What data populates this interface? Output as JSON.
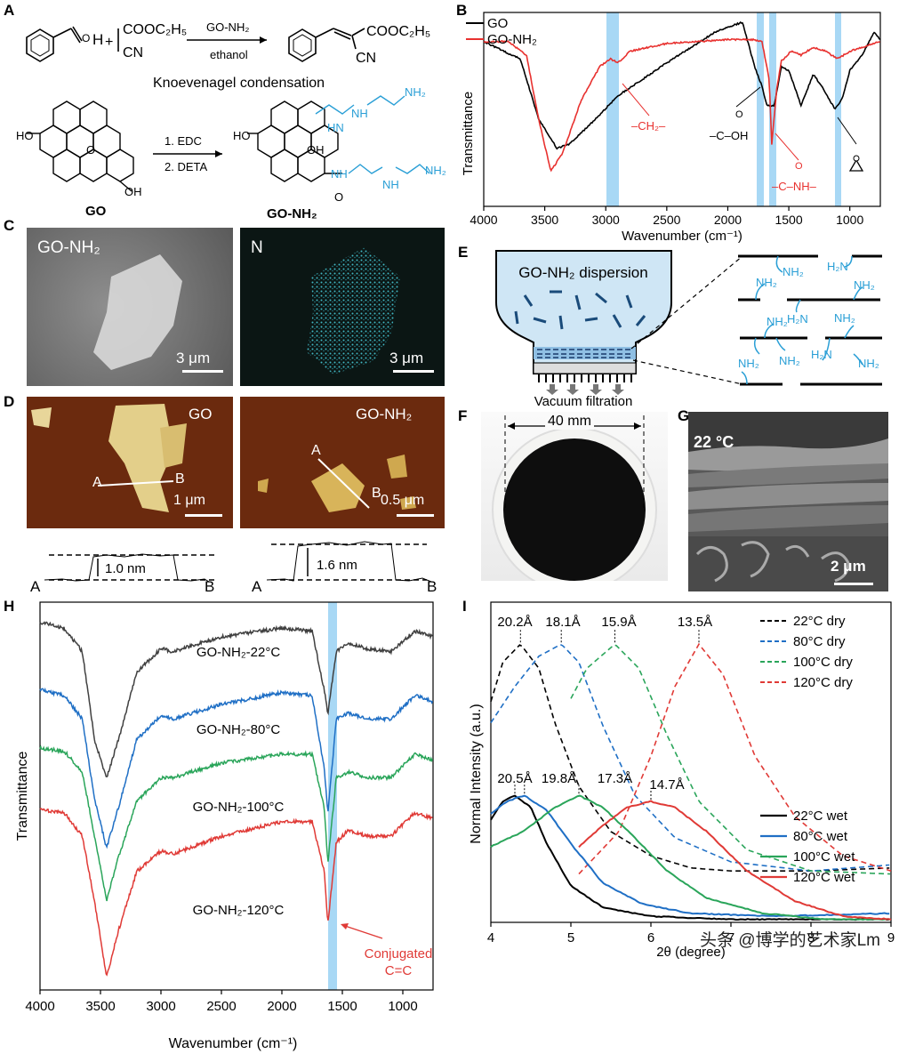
{
  "panels": {
    "A": {
      "letter": "A",
      "reaction1": {
        "catalyst": "GO-NH₂",
        "solvent": "ethanol",
        "reactant_ester": "COOC₂H₅",
        "reactant_cn": "CN",
        "product_ester": "COOC₂H₅",
        "product_cn": "CN",
        "aldehyde_h": "H",
        "plus": "+",
        "name": "Knoevenagel condensation"
      },
      "reaction2": {
        "step1": "1. EDC",
        "step2": "2. DETA",
        "left_name": "GO",
        "right_name": "GO-NH₂",
        "ho": "HO",
        "oh": "OH",
        "o": "O",
        "nh2": "NH₂",
        "hn": "HN",
        "nh": "NH",
        "h": "H"
      }
    },
    "B": {
      "letter": "B",
      "legend": [
        "GO",
        "GO-NH₂"
      ],
      "xlabel": "Wavenumber (cm⁻¹)",
      "ylabel": "Transmittance",
      "xticks": [
        "4000",
        "3500",
        "3000",
        "2500",
        "2000",
        "1500",
        "1000"
      ],
      "annotations": {
        "ch2": "–CH₂–",
        "cooh_o": "O",
        "cooh": "–C–OH",
        "conh_o": "O",
        "conh": "–C–NH–"
      }
    },
    "C": {
      "letter": "C",
      "left_label": "GO-NH₂",
      "right_label": "N",
      "scale_left": "3 μm",
      "scale_right": "3 μm"
    },
    "D": {
      "letter": "D",
      "left_label": "GO",
      "right_label": "GO-NH₂",
      "scale_left": "1 μm",
      "scale_right": "0.5 μm",
      "a": "A",
      "b": "B",
      "height_left": "1.0 nm",
      "height_right": "1.6 nm"
    },
    "E": {
      "letter": "E",
      "dispersion": "GO-NH₂ dispersion",
      "filtration": "Vacuum filtration",
      "nh2": "NH₂",
      "h2n": "H₂N"
    },
    "F": {
      "letter": "F",
      "diameter": "40 mm"
    },
    "G": {
      "letter": "G",
      "temp": "22 °C",
      "scale": "2 μm"
    },
    "H": {
      "letter": "H",
      "xlabel": "Wavenumber (cm⁻¹)",
      "ylabel": "Transmittance",
      "xticks": [
        "4000",
        "3500",
        "3000",
        "2500",
        "2000",
        "1500",
        "1000"
      ],
      "series": [
        "GO-NH₂-22°C",
        "GO-NH₂-80°C",
        "GO-NH₂-100°C",
        "GO-NH₂-120°C"
      ],
      "annotation1": "Conjugated",
      "annotation2": "C=C"
    },
    "I": {
      "letter": "I",
      "xlabel": "2θ (degree)",
      "ylabel": "Normal Intensity (a.u.)",
      "xticks": [
        "4",
        "5",
        "6",
        "7",
        "8",
        "9"
      ],
      "legend_dry": [
        "22°C dry",
        "80°C dry",
        "100°C dry",
        "120°C dry"
      ],
      "legend_wet": [
        "22°C wet",
        "80°C wet",
        "100°C wet",
        "120°C wet"
      ],
      "dry_peaks": [
        "20.2Å",
        "18.1Å",
        "15.9Å",
        "13.5Å"
      ],
      "wet_peaks": [
        "20.5Å",
        "19.8Å",
        "17.3Å",
        "14.7Å"
      ]
    }
  },
  "watermark": "头条 @博学的艺术家Lm",
  "colors": {
    "go": "#000000",
    "gonh2": "#e8312f",
    "band": "#a8d8f5",
    "c22": "#404040",
    "c80": "#1f6fc5",
    "c100": "#2aa55a",
    "c120": "#e03a36",
    "teal": "#2a9fd6"
  },
  "chart_data": [
    {
      "type": "line",
      "title": "",
      "xlabel": "Wavenumber (cm⁻¹)",
      "ylabel": "Transmittance",
      "xlim": [
        4000,
        750
      ],
      "series": [
        {
          "name": "GO",
          "x": [
            4000,
            3700,
            3550,
            3400,
            3300,
            3100,
            2900,
            2500,
            2100,
            1880,
            1780,
            1720,
            1680,
            1620,
            1560,
            1500,
            1400,
            1300,
            1230,
            1120,
            1060,
            1000,
            900,
            800,
            750
          ],
          "y": [
            0.85,
            0.76,
            0.45,
            0.3,
            0.32,
            0.44,
            0.57,
            0.74,
            0.9,
            0.95,
            0.72,
            0.62,
            0.52,
            0.52,
            0.72,
            0.7,
            0.52,
            0.68,
            0.62,
            0.5,
            0.56,
            0.7,
            0.78,
            0.9,
            0.86
          ]
        },
        {
          "name": "GO-NH₂",
          "x": [
            4000,
            3800,
            3650,
            3550,
            3450,
            3350,
            3200,
            3050,
            2960,
            2900,
            2800,
            2500,
            2000,
            1800,
            1720,
            1660,
            1640,
            1600,
            1560,
            1480,
            1400,
            1300,
            1200,
            1100,
            1000,
            900,
            800,
            750
          ],
          "y": [
            0.85,
            0.85,
            0.78,
            0.45,
            0.18,
            0.28,
            0.55,
            0.72,
            0.76,
            0.74,
            0.8,
            0.84,
            0.86,
            0.86,
            0.85,
            0.65,
            0.32,
            0.6,
            0.75,
            0.8,
            0.78,
            0.82,
            0.8,
            0.76,
            0.8,
            0.82,
            0.84,
            0.85
          ]
        }
      ]
    },
    {
      "type": "line",
      "title": "",
      "xlabel": "Wavenumber (cm⁻¹)",
      "ylabel": "Transmittance",
      "xlim": [
        4000,
        750
      ],
      "series": [
        {
          "name": "GO-NH₂-22°C",
          "x": [
            4000,
            3800,
            3650,
            3550,
            3450,
            3350,
            3200,
            3000,
            2900,
            2500,
            2000,
            1750,
            1650,
            1620,
            1550,
            1450,
            1300,
            1100,
            900,
            750
          ],
          "y": [
            0.95,
            0.93,
            0.85,
            0.55,
            0.42,
            0.55,
            0.78,
            0.86,
            0.85,
            0.9,
            0.93,
            0.92,
            0.72,
            0.64,
            0.85,
            0.88,
            0.86,
            0.85,
            0.92,
            0.9
          ]
        },
        {
          "name": "GO-NH₂-80°C",
          "x": [
            4000,
            3800,
            3650,
            3550,
            3450,
            3350,
            3200,
            3000,
            2900,
            2500,
            2000,
            1750,
            1650,
            1620,
            1550,
            1450,
            1300,
            1100,
            900,
            750
          ],
          "y": [
            0.72,
            0.7,
            0.62,
            0.35,
            0.18,
            0.32,
            0.55,
            0.63,
            0.62,
            0.67,
            0.71,
            0.7,
            0.45,
            0.3,
            0.62,
            0.64,
            0.62,
            0.62,
            0.7,
            0.68
          ]
        },
        {
          "name": "GO-NH₂-100°C",
          "x": [
            4000,
            3800,
            3650,
            3550,
            3450,
            3350,
            3200,
            3000,
            2900,
            2500,
            2000,
            1750,
            1650,
            1620,
            1550,
            1450,
            1300,
            1100,
            900,
            750
          ],
          "y": [
            0.52,
            0.51,
            0.44,
            0.22,
            0.0,
            0.15,
            0.34,
            0.42,
            0.42,
            0.47,
            0.5,
            0.5,
            0.32,
            0.13,
            0.42,
            0.44,
            0.42,
            0.42,
            0.5,
            0.48
          ]
        },
        {
          "name": "GO-NH₂-120°C",
          "x": [
            4000,
            3800,
            3650,
            3550,
            3450,
            3350,
            3200,
            3000,
            2900,
            2500,
            2000,
            1750,
            1650,
            1620,
            1550,
            1450,
            1300,
            1100,
            900,
            750
          ],
          "y": [
            0.31,
            0.3,
            0.22,
            0.0,
            -0.26,
            -0.1,
            0.1,
            0.17,
            0.16,
            0.22,
            0.27,
            0.27,
            0.1,
            -0.08,
            0.2,
            0.24,
            0.22,
            0.22,
            0.3,
            0.28
          ]
        }
      ]
    },
    {
      "type": "line",
      "title": "",
      "xlabel": "2θ (degree)",
      "ylabel": "Normal Intensity (a.u.)",
      "xlim": [
        4,
        9
      ],
      "series": [
        {
          "name": "22°C dry",
          "x": [
            4.0,
            4.15,
            4.37,
            4.6,
            4.8,
            5.1,
            5.5,
            6.0,
            6.5,
            7.0,
            8.0,
            9.0
          ],
          "y": [
            0.73,
            0.86,
            0.92,
            0.84,
            0.66,
            0.45,
            0.3,
            0.22,
            0.18,
            0.17,
            0.17,
            0.18
          ]
        },
        {
          "name": "80°C dry",
          "x": [
            4.0,
            4.3,
            4.6,
            4.88,
            5.1,
            5.4,
            5.8,
            6.3,
            7.0,
            8.0,
            9.0
          ],
          "y": [
            0.66,
            0.78,
            0.88,
            0.92,
            0.86,
            0.65,
            0.42,
            0.28,
            0.2,
            0.17,
            0.19
          ]
        },
        {
          "name": "100°C dry",
          "x": [
            5.0,
            5.2,
            5.55,
            5.85,
            6.2,
            6.6,
            7.2,
            8.0,
            9.0
          ],
          "y": [
            0.74,
            0.84,
            0.92,
            0.84,
            0.62,
            0.4,
            0.24,
            0.17,
            0.16
          ]
        },
        {
          "name": "120°C dry",
          "x": [
            5.1,
            5.6,
            6.0,
            6.3,
            6.6,
            6.9,
            7.3,
            7.8,
            8.4,
            9.0
          ],
          "y": [
            0.16,
            0.3,
            0.55,
            0.78,
            0.92,
            0.82,
            0.55,
            0.35,
            0.22,
            0.17
          ]
        },
        {
          "name": "22°C wet",
          "x": [
            4.0,
            4.15,
            4.3,
            4.5,
            4.7,
            5.0,
            5.4,
            6.0,
            7.0,
            8.0,
            9.0
          ],
          "y": [
            0.34,
            0.4,
            0.42,
            0.38,
            0.26,
            0.12,
            0.05,
            0.02,
            0.01,
            0.01,
            0.01
          ]
        },
        {
          "name": "80°C wet",
          "x": [
            4.0,
            4.2,
            4.42,
            4.7,
            5.0,
            5.4,
            5.9,
            6.5,
            7.5,
            9.0
          ],
          "y": [
            0.36,
            0.4,
            0.42,
            0.37,
            0.26,
            0.13,
            0.06,
            0.03,
            0.02,
            0.03
          ]
        },
        {
          "name": "100°C wet",
          "x": [
            4.0,
            4.4,
            4.8,
            5.1,
            5.4,
            5.8,
            6.2,
            6.7,
            7.4,
            8.2,
            9.0
          ],
          "y": [
            0.25,
            0.3,
            0.38,
            0.42,
            0.38,
            0.28,
            0.17,
            0.08,
            0.03,
            0.01,
            0.01
          ]
        },
        {
          "name": "120°C wet",
          "x": [
            5.1,
            5.4,
            5.7,
            6.0,
            6.3,
            6.7,
            7.2,
            7.8,
            8.4,
            9.0
          ],
          "y": [
            0.25,
            0.32,
            0.38,
            0.4,
            0.38,
            0.3,
            0.17,
            0.07,
            0.02,
            0.01
          ]
        }
      ]
    }
  ]
}
